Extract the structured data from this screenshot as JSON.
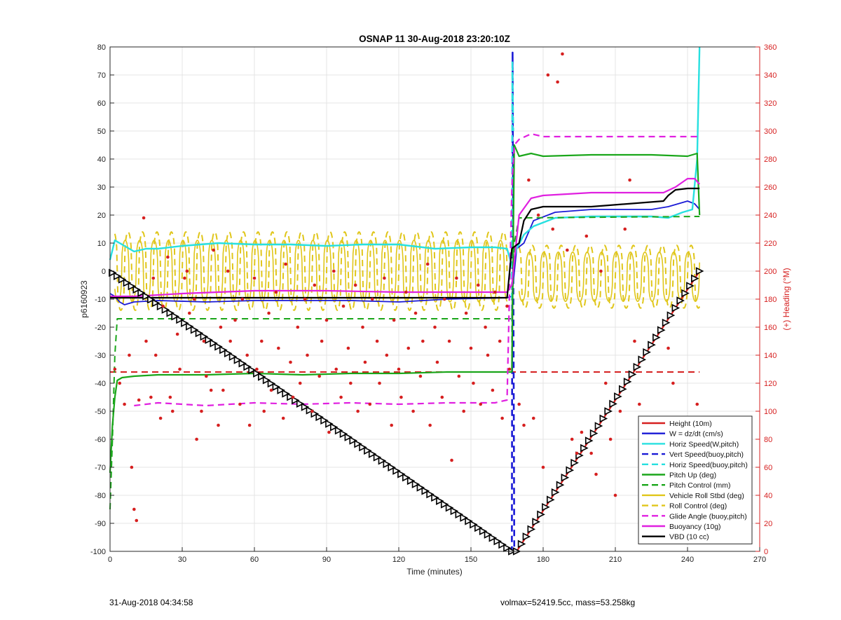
{
  "chart_data": {
    "type": "line",
    "title": "OSNAP 11 30-Aug-2018 23:20:10Z",
    "xlabel": "Time (minutes)",
    "ylabel_left": "p6160923",
    "ylabel_right": "(+) Heading (°M)",
    "xlim": [
      0,
      270
    ],
    "ylim_left": [
      -100,
      80
    ],
    "ylim_right": [
      0,
      360
    ],
    "x_ticks": [
      0,
      30,
      60,
      90,
      120,
      150,
      180,
      210,
      240,
      270
    ],
    "y_ticks_left": [
      -100,
      -90,
      -80,
      -70,
      -60,
      -50,
      -40,
      -30,
      -20,
      -10,
      0,
      10,
      20,
      30,
      40,
      50,
      60,
      70,
      80
    ],
    "y_ticks_right": [
      0,
      20,
      40,
      60,
      80,
      100,
      120,
      140,
      160,
      180,
      200,
      220,
      240,
      260,
      280,
      300,
      320,
      340,
      360
    ],
    "grid": true,
    "legend_position": "bottom-right",
    "series": [
      {
        "name": "Height (10m)",
        "color": "#d62020",
        "dash": "solid",
        "width": 2.2,
        "x": [
          0,
          167,
          169,
          245
        ],
        "y": [
          0,
          -100,
          -100,
          0
        ]
      },
      {
        "name": "W = dz/dt (cm/s)",
        "color": "#1a1ad6",
        "dash": "solid",
        "width": 1.8,
        "x": [
          0,
          2,
          4,
          6,
          10,
          20,
          40,
          60,
          80,
          100,
          120,
          140,
          165,
          167,
          169,
          172,
          176,
          185,
          200,
          225,
          232,
          240,
          243,
          245
        ],
        "y": [
          -8,
          -9,
          -11,
          -12,
          -11,
          -10.5,
          -11,
          -10.5,
          -10.5,
          -10.5,
          -11,
          -10,
          -9.5,
          -9,
          8,
          10,
          18,
          21,
          22,
          22,
          23,
          25,
          24,
          22
        ]
      },
      {
        "name": "Horiz Speed(W,pitch)",
        "color": "#27e0e0",
        "dash": "solid",
        "width": 2.4,
        "x": [
          0,
          2,
          4,
          6,
          10,
          15,
          20,
          30,
          45,
          60,
          75,
          90,
          105,
          120,
          135,
          150,
          160,
          165,
          167,
          169,
          172,
          176,
          185,
          200,
          225,
          232,
          238,
          242,
          244,
          245
        ],
        "y": [
          4,
          11,
          10,
          9,
          7,
          8,
          8,
          9,
          10,
          9.5,
          9.5,
          9,
          9.5,
          9.5,
          8,
          8.5,
          8.5,
          8,
          2,
          8,
          13,
          16,
          19,
          19.5,
          19.5,
          19,
          21,
          22,
          40,
          80
        ]
      },
      {
        "name": "Vert Speed(buoy,pitch)",
        "color": "#1a1ad6",
        "dash": "dashed",
        "width": 2.6,
        "x": [
          166.5,
          167,
          167.3,
          167.6,
          168
        ],
        "y": [
          -100,
          -100,
          78,
          0,
          -100
        ]
      },
      {
        "name": "Horiz Speed(buoy,pitch)",
        "color": "#27e0e0",
        "dash": "dashed",
        "width": 2.4,
        "x": [
          167,
          167.2,
          167.6
        ],
        "y": [
          -10,
          75,
          50
        ]
      },
      {
        "name": "Pitch Up (deg)",
        "color": "#1aa61a",
        "dash": "solid",
        "width": 2.2,
        "x": [
          0,
          1,
          2,
          3,
          5,
          10,
          20,
          40,
          60,
          80,
          100,
          120,
          140,
          165,
          167,
          168,
          170,
          175,
          180,
          200,
          225,
          240,
          244,
          245
        ],
        "y": [
          -72,
          -55,
          -45,
          -39,
          -38,
          -37.5,
          -37,
          -37,
          -36.5,
          -37,
          -36.5,
          -36.5,
          -36,
          -36,
          -36,
          45,
          41,
          42,
          41,
          41.5,
          41.5,
          41,
          42,
          20
        ]
      },
      {
        "name": "Pitch Control (mm)",
        "color": "#1aa61a",
        "dash": "dashed",
        "width": 2,
        "x": [
          0,
          1,
          2,
          3,
          6,
          166,
          167,
          168,
          170,
          245
        ],
        "y": [
          -85,
          -60,
          -30,
          -17,
          -17,
          -17,
          -17,
          10,
          19,
          19.5
        ]
      },
      {
        "name": "Vehicle Roll Stbd (deg)",
        "color": "#e0c61a",
        "dash": "solid",
        "width": 1.6,
        "x": [
          0,
          245
        ],
        "y": [
          0,
          0
        ]
      },
      {
        "name": "Roll Control (deg)",
        "color": "#e0c61a",
        "dash": "dashed",
        "width": 2,
        "x": [
          0,
          245
        ],
        "y": [
          0,
          0
        ]
      },
      {
        "name": "Glide Angle (buoy,pitch)",
        "color": "#e020e0",
        "dash": "dashed",
        "width": 2.2,
        "x": [
          10,
          20,
          40,
          60,
          80,
          100,
          120,
          140,
          160,
          165,
          167,
          168,
          170,
          175,
          180,
          200,
          220,
          245
        ],
        "y": [
          -48,
          -47,
          -48,
          -47,
          -47.5,
          -47,
          -47.5,
          -47,
          -47,
          -46,
          30,
          45,
          47,
          49,
          48,
          48,
          48,
          48
        ]
      },
      {
        "name": "Buoyancy (10g)",
        "color": "#e020e0",
        "dash": "solid",
        "width": 2.2,
        "x": [
          0,
          10,
          30,
          60,
          90,
          120,
          150,
          165,
          167,
          170,
          175,
          180,
          200,
          230,
          235,
          240,
          243,
          245
        ],
        "y": [
          -9,
          -9,
          -8,
          -7,
          -7,
          -7.5,
          -7.5,
          -7.5,
          -5,
          20,
          26,
          27,
          28,
          28,
          30,
          33,
          33,
          31
        ]
      },
      {
        "name": "VBD (10 cc)",
        "color": "#000000",
        "dash": "solid",
        "width": 2.2,
        "x": [
          0,
          10,
          30,
          60,
          90,
          120,
          150,
          165,
          167,
          170,
          172,
          175,
          180,
          200,
          230,
          232,
          235,
          240,
          245
        ],
        "y": [
          -9.5,
          -9.5,
          -9.5,
          -9.5,
          -9.5,
          -9.5,
          -9.5,
          -9.5,
          8,
          10,
          18,
          22,
          23,
          23,
          25,
          27,
          29,
          29.5,
          29.5
        ]
      }
    ],
    "heading_points": {
      "color": "#d62020",
      "axis": "right",
      "x": [
        2,
        4,
        6,
        8,
        9,
        10,
        11,
        12,
        14,
        15,
        17,
        18,
        19,
        21,
        22,
        24,
        25,
        26,
        28,
        29,
        31,
        32,
        33,
        35,
        36,
        38,
        39,
        40,
        42,
        43,
        45,
        46,
        47,
        49,
        50,
        52,
        54,
        55,
        57,
        58,
        60,
        61,
        63,
        64,
        66,
        67,
        69,
        70,
        72,
        73,
        75,
        76,
        78,
        79,
        81,
        82,
        84,
        85,
        87,
        88,
        90,
        91,
        93,
        94,
        96,
        97,
        99,
        100,
        102,
        103,
        105,
        106,
        108,
        109,
        111,
        112,
        114,
        115,
        117,
        118,
        120,
        121,
        123,
        124,
        126,
        127,
        129,
        130,
        132,
        133,
        135,
        136,
        138,
        139,
        141,
        142,
        144,
        145,
        147,
        148,
        150,
        151,
        153,
        154,
        156,
        157,
        159,
        160,
        162,
        163,
        165,
        166,
        170,
        172,
        174,
        176,
        178,
        180,
        182,
        184,
        186,
        188,
        190,
        192,
        194,
        196,
        198,
        200,
        202,
        204,
        206,
        208,
        210,
        212,
        214,
        216,
        218,
        220,
        222,
        224,
        226,
        228,
        230,
        232,
        234,
        236,
        238,
        240,
        242,
        244
      ],
      "y": [
        130,
        120,
        105,
        140,
        60,
        30,
        22,
        108,
        238,
        150,
        110,
        195,
        140,
        95,
        175,
        210,
        110,
        100,
        155,
        130,
        195,
        200,
        170,
        180,
        80,
        100,
        150,
        125,
        115,
        215,
        90,
        160,
        115,
        200,
        150,
        165,
        105,
        180,
        140,
        90,
        195,
        130,
        150,
        100,
        170,
        115,
        185,
        145,
        95,
        205,
        135,
        110,
        160,
        120,
        180,
        140,
        100,
        190,
        125,
        150,
        165,
        85,
        200,
        130,
        110,
        175,
        145,
        120,
        190,
        100,
        160,
        135,
        105,
        180,
        150,
        120,
        195,
        140,
        90,
        165,
        130,
        110,
        185,
        145,
        100,
        170,
        125,
        150,
        205,
        90,
        160,
        135,
        110,
        180,
        150,
        65,
        195,
        125,
        100,
        170,
        145,
        120,
        190,
        105,
        160,
        140,
        115,
        185,
        150,
        95,
        175,
        130,
        105,
        90,
        265,
        95,
        240,
        60,
        340,
        230,
        335,
        355,
        215,
        80,
        70,
        85,
        225,
        70,
        55,
        200,
        120,
        80,
        40,
        100,
        230,
        265,
        150,
        105,
        80,
        60,
        30,
        45,
        75,
        145,
        120,
        60,
        60,
        80,
        90,
        105
      ]
    },
    "markers": {
      "x": [
        1,
        3,
        5,
        7,
        9,
        11,
        13,
        15,
        17,
        19,
        21,
        23,
        25,
        27,
        29,
        31,
        33,
        35,
        37,
        39,
        41,
        43,
        45,
        47,
        49,
        51,
        53,
        55,
        57,
        59,
        61,
        63,
        65,
        67,
        69,
        71,
        73,
        75,
        77,
        79,
        81,
        83,
        85,
        87,
        89,
        91,
        93,
        95,
        97,
        99,
        101,
        103,
        105,
        107,
        109,
        111,
        113,
        115,
        117,
        119,
        121,
        123,
        125,
        127,
        129,
        131,
        133,
        135,
        137,
        139,
        141,
        143,
        145,
        147,
        149,
        151,
        153,
        155,
        157,
        159,
        161,
        163,
        165,
        167,
        169,
        171,
        173,
        175,
        177,
        179,
        181,
        183,
        185,
        187,
        189,
        191,
        193,
        195,
        197,
        199,
        201,
        203,
        205,
        207,
        209,
        211,
        213,
        215,
        217,
        219,
        221,
        223,
        225,
        227,
        229,
        231,
        233,
        235,
        237,
        239,
        241,
        243,
        245
      ]
    },
    "legend_entries": [
      "Height (10m)",
      "W = dz/dt (cm/s)",
      "Horiz Speed(W,pitch)",
      "Vert Speed(buoy,pitch)",
      "Horiz Speed(buoy,pitch)",
      "Pitch Up (deg)",
      "Pitch Control (mm)",
      "Vehicle Roll Stbd (deg)",
      "Roll Control (deg)",
      "Glide Angle (buoy,pitch)",
      "Buoyancy (10g)",
      "VBD (10 cc)"
    ]
  },
  "footer": {
    "left": "31-Aug-2018 04:34:58",
    "right": "volmax=52419.5cc, mass=53.258kg"
  }
}
